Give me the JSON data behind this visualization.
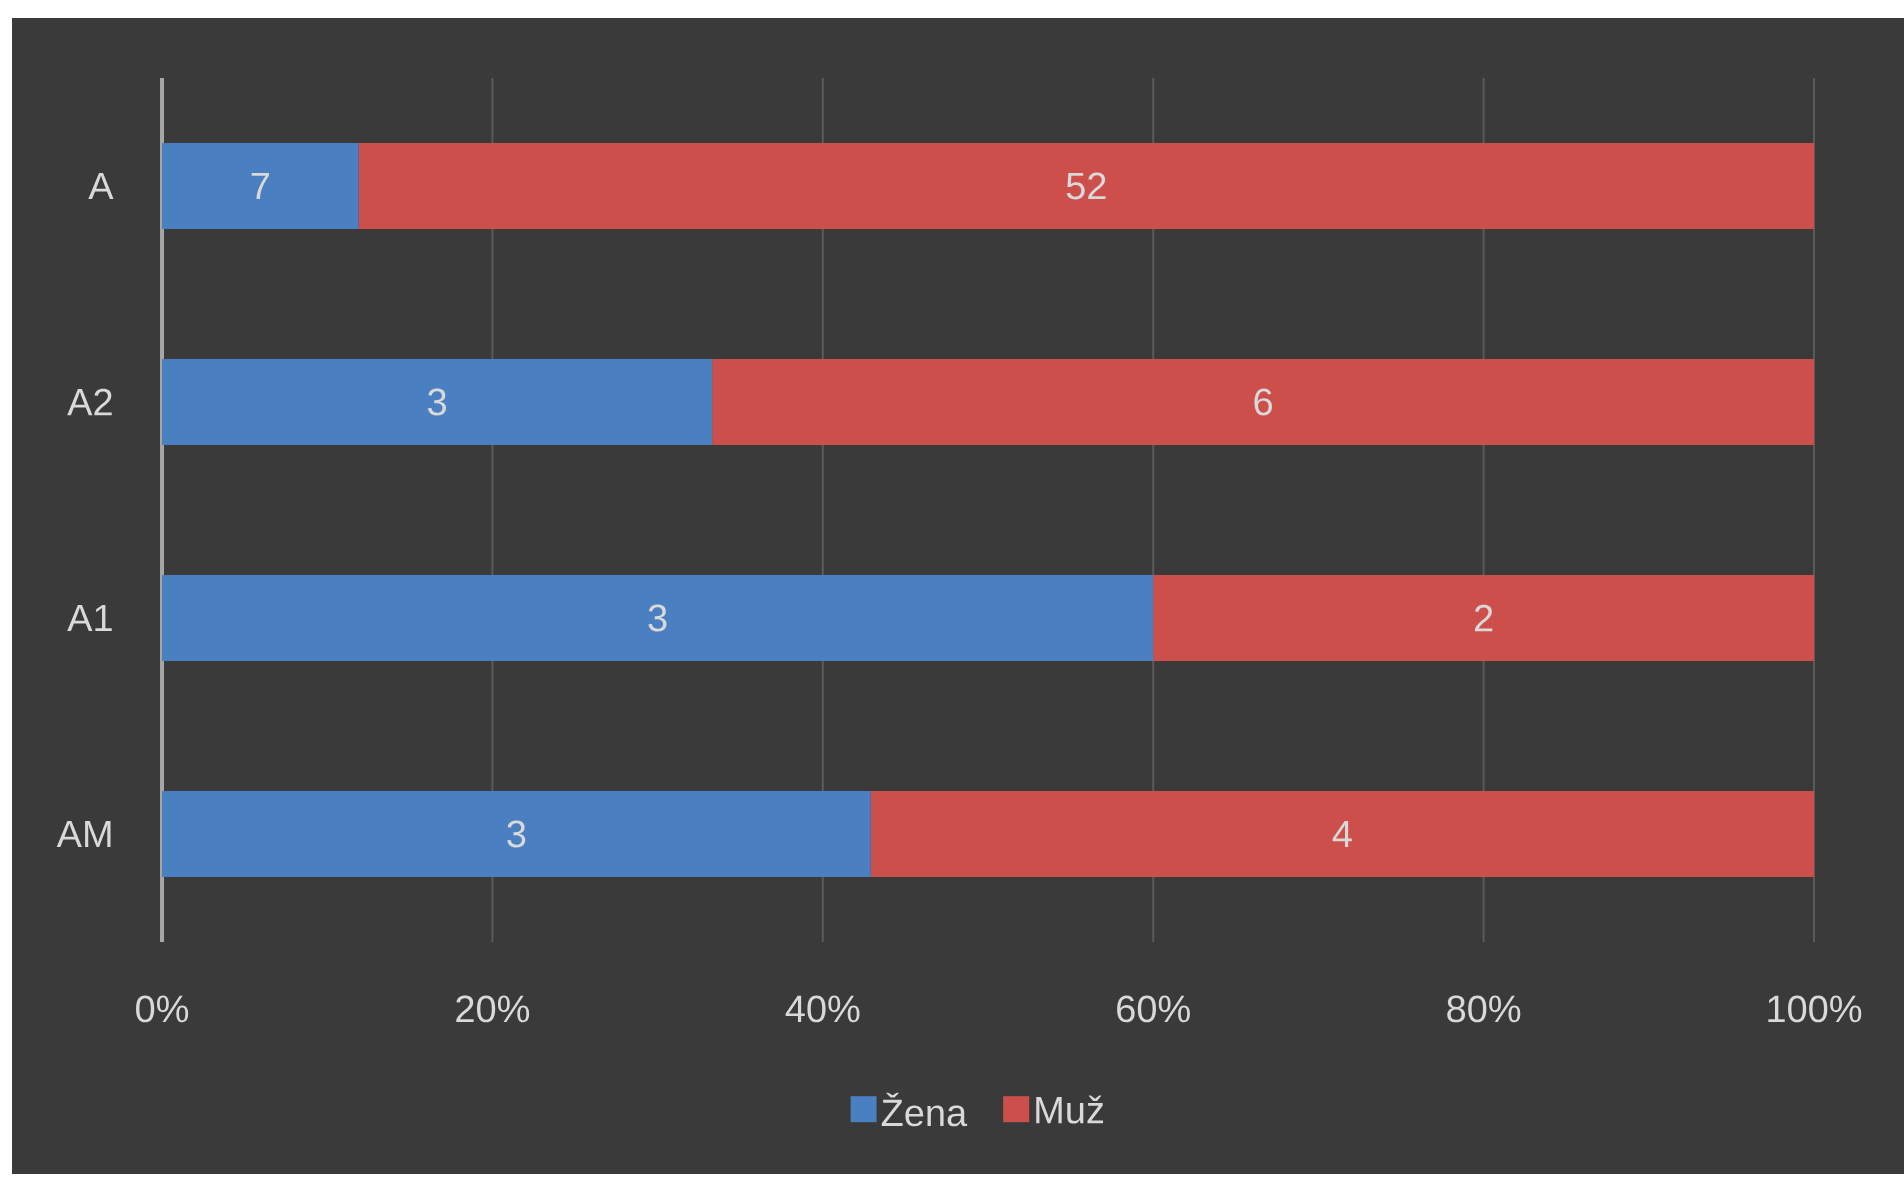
{
  "chart_data": {
    "type": "bar",
    "orientation": "horizontal",
    "stacked": true,
    "categories": [
      "A",
      "A2",
      "A1",
      "AM"
    ],
    "series": [
      {
        "name": "Žena",
        "color": "#4a7fc1",
        "values": [
          11.9,
          33.3,
          60,
          42.9
        ]
      },
      {
        "name": "Muž",
        "color": "#cd4f4b",
        "values": [
          88.1,
          66.7,
          40,
          57.1
        ]
      }
    ],
    "annotations": [
      "7",
      "52",
      "3",
      "6",
      "3",
      "2",
      "3",
      "4"
    ],
    "xlim": [
      0,
      100
    ],
    "xticks": [
      {
        "value": 0,
        "label": "0%"
      },
      {
        "value": 20,
        "label": "20%"
      },
      {
        "value": 40,
        "label": "40%"
      },
      {
        "value": 60,
        "label": "60%"
      },
      {
        "value": 80,
        "label": "80%"
      },
      {
        "value": 100,
        "label": "100%"
      }
    ],
    "grid": "x",
    "legend": "bottom"
  }
}
